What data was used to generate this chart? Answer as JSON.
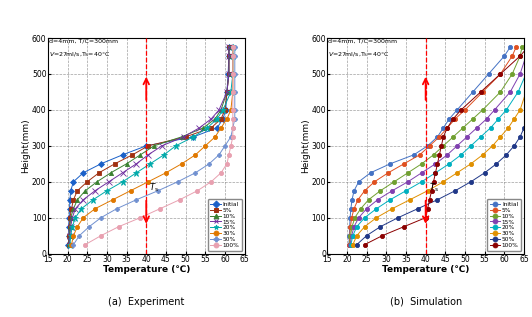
{
  "xlabel": "Temperature (℃)",
  "ylabel": "Height(mm)",
  "xlim": [
    15,
    65
  ],
  "ylim": [
    0,
    600
  ],
  "xticks": [
    15,
    20,
    25,
    30,
    35,
    40,
    45,
    50,
    55,
    60,
    65
  ],
  "yticks": [
    0,
    100,
    200,
    300,
    400,
    500,
    600
  ],
  "Ts_x": 40,
  "legend_labels": [
    "Initial",
    "5%",
    "10%",
    "15%",
    "20%",
    "30%",
    "50%",
    "100%"
  ],
  "heights": [
    25,
    50,
    75,
    100,
    125,
    150,
    175,
    200,
    225,
    250,
    275,
    300,
    325,
    350,
    375,
    400,
    450,
    500,
    550,
    575
  ],
  "colors_exp": {
    "Initial": "#1a60c8",
    "5%": "#a03010",
    "10%": "#3a8030",
    "15%": "#7030a0",
    "20%": "#00aaaa",
    "30%": "#e07800",
    "50%": "#7090d0",
    "100%": "#e8a0b0"
  },
  "colors_sim": {
    "Initial": "#4472c4",
    "5%": "#e05020",
    "10%": "#70a030",
    "15%": "#8040b0",
    "20%": "#00b0c0",
    "30%": "#e09000",
    "50%": "#203888",
    "100%": "#8b0000"
  },
  "markers_exp": {
    "Initial": "D",
    "5%": "s",
    "10%": "^",
    "15%": "x",
    "20%": "*",
    "30%": "o",
    "50%": "P",
    "100%": "o"
  },
  "exp_data": {
    "Initial": [
      20.2,
      20.3,
      20.3,
      20.4,
      20.5,
      20.6,
      20.8,
      21.5,
      24.0,
      28.5,
      34.0,
      40.0,
      52.0,
      58.0,
      59.5,
      60.2,
      60.5,
      60.8,
      61.0,
      61.0
    ],
    "5%": [
      20.3,
      20.4,
      20.5,
      20.6,
      21.0,
      21.5,
      22.5,
      25.0,
      28.0,
      32.0,
      36.5,
      40.5,
      50.0,
      56.5,
      59.0,
      60.0,
      60.5,
      61.0,
      61.0,
      61.0
    ],
    "10%": [
      20.4,
      20.5,
      20.6,
      20.8,
      21.5,
      22.5,
      24.5,
      27.5,
      31.0,
      35.0,
      38.5,
      42.0,
      49.0,
      54.5,
      57.5,
      59.0,
      60.5,
      61.0,
      61.0,
      61.0
    ],
    "15%": [
      20.5,
      20.6,
      20.8,
      21.2,
      22.0,
      24.0,
      27.0,
      30.5,
      34.0,
      37.5,
      40.5,
      44.0,
      49.5,
      53.5,
      56.5,
      58.5,
      60.5,
      61.0,
      61.0,
      61.0
    ],
    "20%": [
      20.6,
      20.8,
      21.2,
      22.0,
      23.5,
      26.5,
      30.0,
      34.0,
      37.5,
      41.0,
      44.5,
      47.5,
      52.0,
      55.5,
      58.0,
      59.5,
      61.5,
      62.0,
      62.0,
      62.0
    ],
    "30%": [
      21.0,
      21.5,
      22.5,
      24.0,
      27.0,
      31.5,
      36.0,
      40.5,
      45.0,
      49.0,
      52.5,
      55.0,
      57.5,
      59.0,
      60.5,
      61.5,
      62.0,
      62.0,
      62.0,
      62.0
    ],
    "50%": [
      21.5,
      23.0,
      25.5,
      28.5,
      32.5,
      37.5,
      43.0,
      48.0,
      52.5,
      56.0,
      58.5,
      60.0,
      61.5,
      62.0,
      62.5,
      62.5,
      62.5,
      62.5,
      62.5,
      62.5
    ],
    "100%": [
      24.5,
      28.5,
      33.0,
      38.5,
      43.5,
      48.5,
      53.0,
      56.5,
      59.0,
      60.5,
      61.0,
      61.5,
      62.0,
      62.0,
      62.0,
      62.0,
      62.0,
      62.0,
      62.0,
      62.0
    ]
  },
  "sim_data": {
    "Initial": [
      20.5,
      20.6,
      20.7,
      20.8,
      21.0,
      21.3,
      21.8,
      23.0,
      26.0,
      31.0,
      37.0,
      40.5,
      43.0,
      44.5,
      46.0,
      48.0,
      52.0,
      56.0,
      60.0,
      61.5
    ],
    "5%": [
      20.6,
      20.7,
      20.9,
      21.2,
      21.8,
      22.8,
      24.5,
      27.0,
      30.5,
      34.5,
      38.5,
      41.0,
      43.5,
      45.5,
      47.5,
      50.0,
      54.5,
      59.0,
      62.0,
      63.0
    ],
    "10%": [
      20.7,
      20.9,
      21.3,
      22.0,
      23.5,
      25.5,
      28.5,
      32.0,
      35.5,
      39.0,
      42.0,
      44.5,
      47.0,
      49.5,
      52.0,
      54.5,
      59.0,
      62.0,
      64.0,
      64.5
    ],
    "15%": [
      20.8,
      21.2,
      21.8,
      23.0,
      25.0,
      27.8,
      31.5,
      35.5,
      39.0,
      42.5,
      45.5,
      48.0,
      50.5,
      53.0,
      55.5,
      57.5,
      61.5,
      64.0,
      65.5,
      66.0
    ],
    "20%": [
      21.0,
      21.5,
      22.5,
      24.5,
      27.5,
      31.0,
      35.0,
      39.0,
      42.5,
      46.0,
      49.0,
      51.5,
      54.0,
      56.5,
      58.5,
      60.5,
      63.5,
      65.5,
      66.5,
      67.0
    ],
    "30%": [
      21.5,
      22.5,
      24.5,
      27.5,
      31.5,
      36.0,
      40.5,
      44.5,
      48.0,
      51.5,
      54.5,
      57.0,
      59.0,
      61.0,
      62.5,
      64.0,
      65.5,
      66.0,
      66.0,
      66.0
    ],
    "50%": [
      22.5,
      25.0,
      28.5,
      33.0,
      38.0,
      43.0,
      47.5,
      51.5,
      55.0,
      58.0,
      60.5,
      62.5,
      64.0,
      65.0,
      65.5,
      66.0,
      66.5,
      67.0,
      67.0,
      67.0
    ],
    "100%": [
      24.5,
      29.0,
      34.5,
      40.0,
      40.5,
      41.0,
      41.5,
      42.0,
      42.5,
      43.0,
      43.5,
      44.0,
      44.5,
      45.5,
      47.0,
      49.0,
      54.0,
      59.0,
      64.0,
      66.0
    ]
  },
  "ann_line1": "d=4mm, T/C=300mm",
  "ann_line2": "V⁻=27ml/s,Tₛ=40°C",
  "panel_a": "(a)  Experiment",
  "panel_b": "(b)  Simulation"
}
